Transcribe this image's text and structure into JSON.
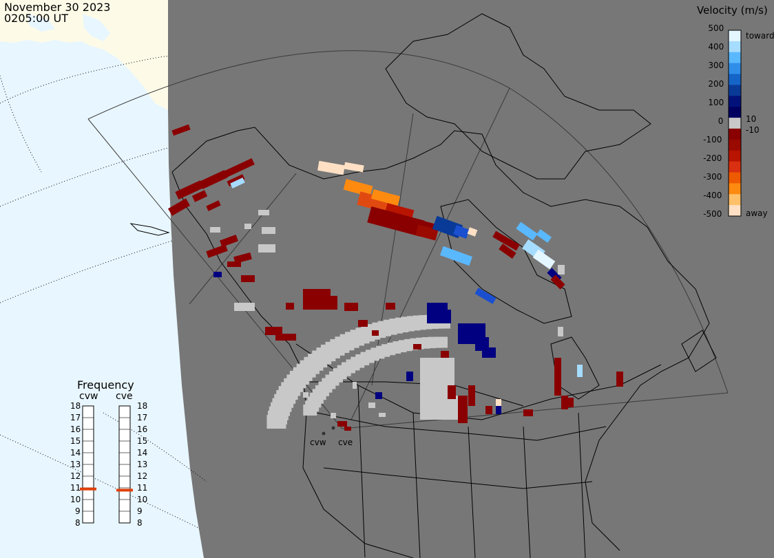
{
  "header": {
    "date": "November 30 2023",
    "time": "0205:00 UT"
  },
  "colorbar": {
    "title": "Velocity (m/s)",
    "ticks": [
      "500",
      "400",
      "300",
      "200",
      "100",
      "0",
      "-100",
      "-200",
      "-300",
      "-400",
      "-500"
    ],
    "label_toward": "toward",
    "label_away": "away",
    "label_pos10": "10",
    "label_neg10": "-10",
    "colors": [
      "#e4f6ff",
      "#a6dcff",
      "#5ab8ff",
      "#2f8fe8",
      "#1565c8",
      "#0a3a98",
      "#02127a",
      "#000060",
      "#c8c8c8",
      "#8a0000",
      "#9a0a00",
      "#b81400",
      "#d83010",
      "#ee5a00",
      "#ff8a10",
      "#ffc06a",
      "#ffe0c4"
    ]
  },
  "frequency_panel": {
    "title": "Frequency",
    "radars": [
      "cvw",
      "cve"
    ],
    "ticks": [
      "18",
      "17",
      "16",
      "15",
      "14",
      "13",
      "12",
      "11",
      "10",
      "9",
      "8"
    ],
    "cvw_value_mhz": 10.9,
    "cve_value_mhz": 10.8,
    "marker_color": "#e0400a"
  },
  "radar_sites": {
    "cvw": "cvw",
    "cve": "cve"
  },
  "colors": {
    "land_shade": "#777777",
    "ocean": "#e8f6ff",
    "arctic_land": "#fdfbe8",
    "ground_scatter": "#c8c8c8"
  }
}
